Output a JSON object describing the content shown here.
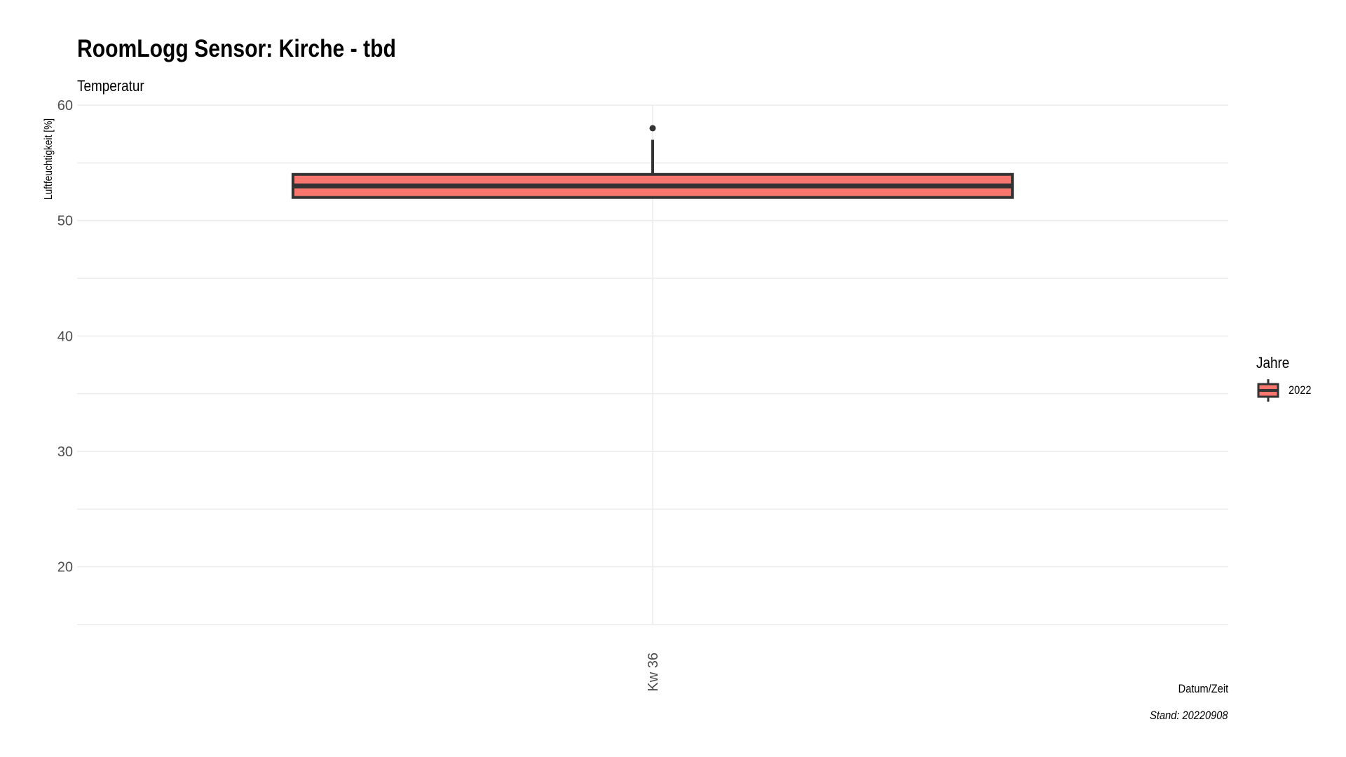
{
  "chart_data": {
    "type": "boxplot",
    "title": "RoomLogg Sensor: Kirche - tbd",
    "subtitle": "Temperatur",
    "xlabel": "Datum/Zeit",
    "ylabel": "Luftfeuchtigkeit [%]",
    "caption": "Stand: 20220908",
    "ylim": [
      15,
      60
    ],
    "yticks": [
      20,
      30,
      40,
      50,
      60
    ],
    "categories": [
      "Kw 36"
    ],
    "series": [
      {
        "name": "2022",
        "color": "#F8766D",
        "boxes": [
          {
            "category": "Kw 36",
            "lower_whisker": 52,
            "q1": 52,
            "median": 53,
            "q3": 54,
            "upper_whisker": 57,
            "outliers": [
              58
            ]
          }
        ]
      }
    ],
    "legend": {
      "title": "Jahre",
      "position": "right"
    }
  }
}
